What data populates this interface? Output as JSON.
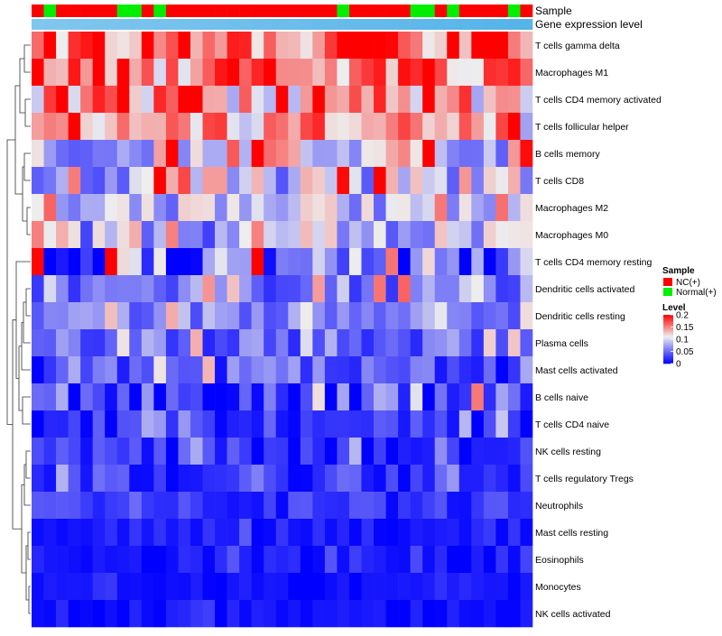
{
  "chart_data": {
    "type": "heatmap",
    "title": "",
    "n_samples": 41,
    "annotations": [
      {
        "label": "Sample"
      },
      {
        "label": "Gene expression level"
      }
    ],
    "sample_groups": [
      "NC(+)",
      "Normal(+)",
      "NC(+)",
      "NC(+)",
      "NC(+)",
      "NC(+)",
      "NC(+)",
      "Normal(+)",
      "Normal(+)",
      "NC(+)",
      "Normal(+)",
      "NC(+)",
      "NC(+)",
      "NC(+)",
      "NC(+)",
      "NC(+)",
      "NC(+)",
      "NC(+)",
      "NC(+)",
      "NC(+)",
      "NC(+)",
      "NC(+)",
      "NC(+)",
      "NC(+)",
      "NC(+)",
      "Normal(+)",
      "NC(+)",
      "NC(+)",
      "NC(+)",
      "NC(+)",
      "NC(+)",
      "Normal(+)",
      "Normal(+)",
      "NC(+)",
      "Normal(+)",
      "NC(+)",
      "NC(+)",
      "NC(+)",
      "NC(+)",
      "Normal(+)",
      "NC(+)"
    ],
    "row_labels": [
      "T cells gamma delta",
      "Macrophages M1",
      "T cells CD4 memory activated",
      "T cells follicular helper",
      "B cells memory",
      "T cells CD8",
      "Macrophages M2",
      "Macrophages M0",
      "T cells CD4 memory resting",
      "Dendritic cells activated",
      "Dendritic cells resting",
      "Plasma cells",
      "Mast cells activated",
      "B cells naive",
      "T cells CD4 naive",
      "NK cells resting",
      "T cells regulatory  Tregs",
      "Neutrophils",
      "Mast cells resting",
      "Eosinophils",
      "Monocytes",
      "NK cells activated"
    ],
    "row_means": [
      0.16,
      0.15,
      0.13,
      0.125,
      0.1,
      0.095,
      0.085,
      0.075,
      0.05,
      0.06,
      0.06,
      0.05,
      0.04,
      0.035,
      0.02,
      0.02,
      0.022,
      0.022,
      0.012,
      0.01,
      0.006,
      0.008
    ],
    "row_spread": [
      0.05,
      0.05,
      0.06,
      0.05,
      0.06,
      0.06,
      0.04,
      0.05,
      0.07,
      0.04,
      0.03,
      0.035,
      0.04,
      0.05,
      0.03,
      0.025,
      0.025,
      0.02,
      0.015,
      0.012,
      0.008,
      0.01
    ],
    "seed": 20240517,
    "color_scale": {
      "min": 0,
      "max": 0.2,
      "low": "#0000ff",
      "mid": "#eeeeee",
      "high": "#ff0000",
      "mid_value": 0.11
    },
    "legend": {
      "placement": "right",
      "sample_title": "Sample",
      "sample_entries": [
        {
          "label": "NC(+)",
          "color": "#ff0000"
        },
        {
          "label": "Normal(+)",
          "color": "#00ee00"
        }
      ],
      "level_title": "Level",
      "level_ticks": [
        0.2,
        0.15,
        0.1,
        0.05,
        0
      ]
    },
    "expression_bar_colors": [
      "#ffffff",
      "#56b4e9"
    ]
  }
}
